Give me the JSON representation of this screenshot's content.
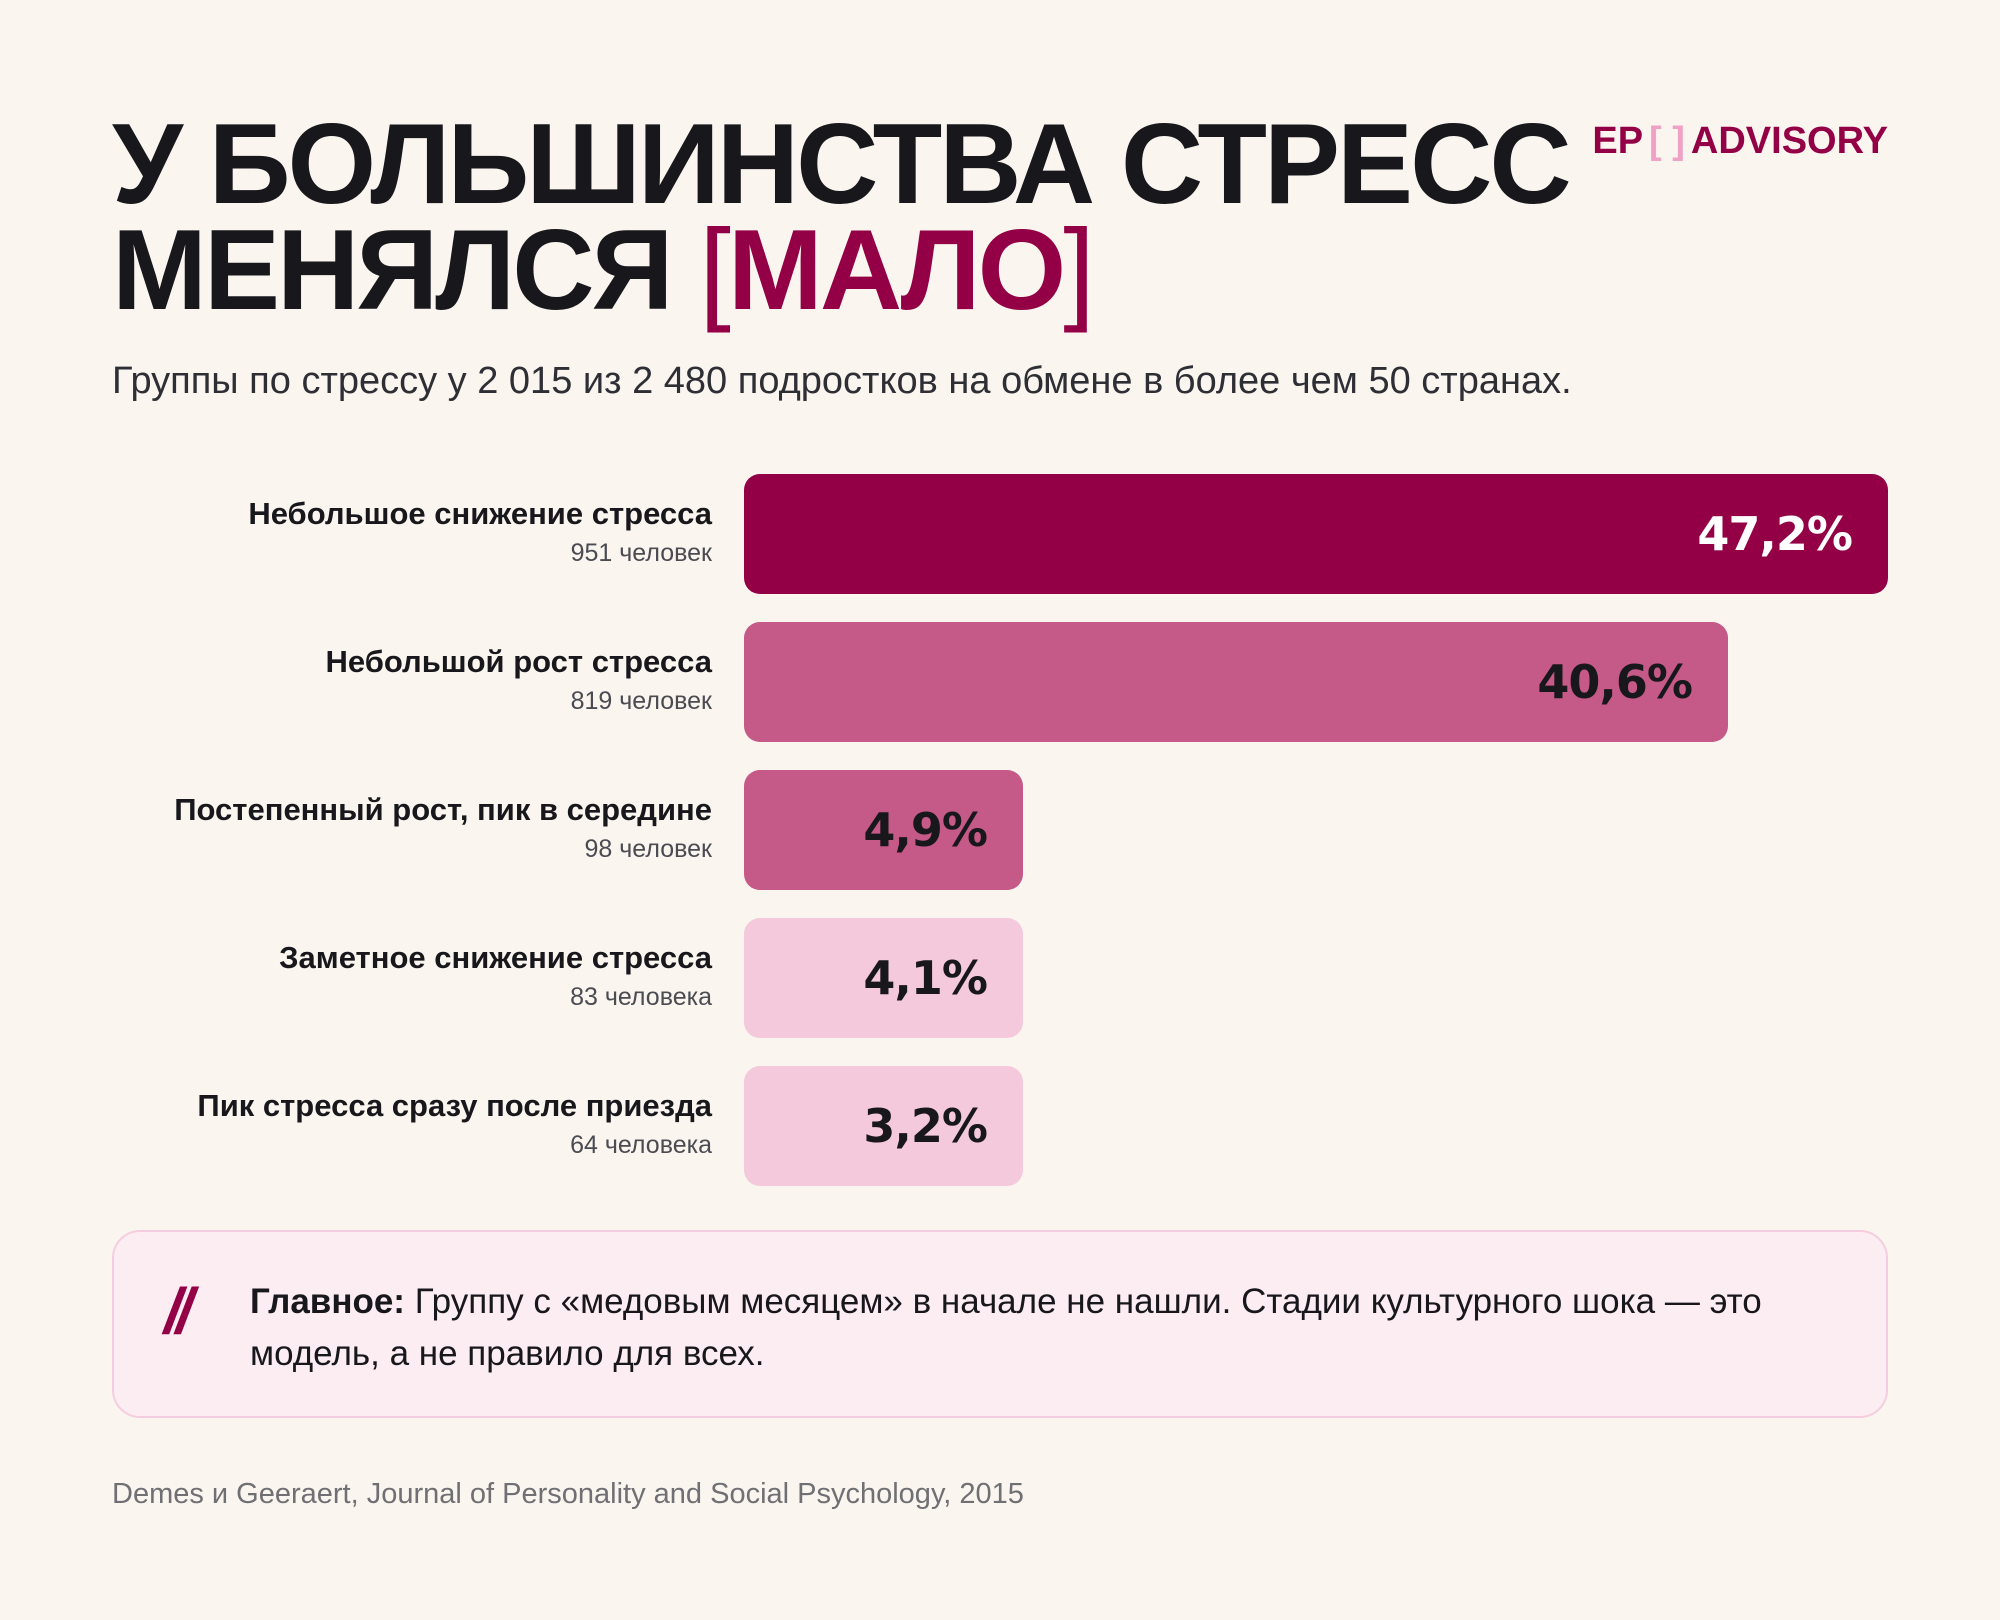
{
  "header": {
    "title_line1": "У БОЛЬШИНСТВА СТРЕСС",
    "title_line2": "МЕНЯЛСЯ",
    "title_bracket_open": "[",
    "title_accent": "МАЛО",
    "title_bracket_close": "]",
    "logo_left": "EP",
    "logo_bracket": "[ ]",
    "logo_right": "ADVISORY",
    "subtitle": "Группы по стрессу у 2 015 из 2 480 подростков на обмене в более чем 50 странах."
  },
  "colors": {
    "background": "#faf5ef",
    "accent": "#940045",
    "medium": "#c55987",
    "light": "#f4c9dc",
    "callout_bg": "#fcedf3"
  },
  "chart_data": {
    "type": "bar",
    "orientation": "horizontal",
    "categories": [
      "Небольшое снижение стресса",
      "Небольшой рост стресса",
      "Постепенный рост, пик в середине",
      "Заметное снижение стресса",
      "Пик стресса сразу после приезда"
    ],
    "counts": [
      "951 человек",
      "819 человек",
      "98 человек",
      "83 человека",
      "64 человека"
    ],
    "values": [
      47.2,
      40.6,
      4.9,
      4.1,
      3.2
    ],
    "value_labels": [
      "47,2%",
      "40,6%",
      "4,9%",
      "4,1%",
      "3,2%"
    ],
    "bar_colors": [
      "#940045",
      "#c55987",
      "#c55987",
      "#f4c9dc",
      "#f4c9dc"
    ],
    "label_colors": [
      "#ffffff",
      "#17171c",
      "#17171c",
      "#17171c",
      "#17171c"
    ],
    "xlim": [
      0,
      47.2
    ],
    "min_display_value": 11.5,
    "grid": false,
    "legend": "none"
  },
  "callout": {
    "icon": "double-slash-quote-icon",
    "lead": "Главное:",
    "text": " Группу с «медовым месяцем» в начале не нашли. Стадии культурного шока — это модель, а не правило для всех."
  },
  "source": "Demes и Geeraert, Journal of Personality and Social Psychology, 2015"
}
